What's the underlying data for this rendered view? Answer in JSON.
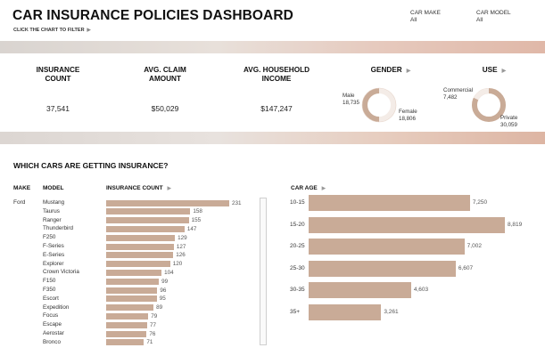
{
  "header": {
    "title": "CAR INSURANCE POLICIES DASHBOARD",
    "subtitle": "CLICK THE CHART TO FILTER",
    "filters": [
      {
        "label": "CAR MAKE",
        "value": "All"
      },
      {
        "label": "CAR MODEL",
        "value": "All"
      }
    ]
  },
  "kpis": {
    "insurance_count": {
      "label_line1": "INSURANCE",
      "label_line2": "COUNT",
      "value": "37,541"
    },
    "avg_claim": {
      "label_line1": "AVG. CLAIM",
      "label_line2": "AMOUNT",
      "value": "$50,029"
    },
    "avg_income": {
      "label_line1": "AVG. HOUSEHOLD",
      "label_line2": "INCOME",
      "value": "$147,247"
    }
  },
  "gender": {
    "label": "GENDER",
    "male_label": "Male",
    "male_value": "18,735",
    "female_label": "Female",
    "female_value": "18,806",
    "colors": {
      "male": "#c9ab97",
      "female": "#f4ece7"
    }
  },
  "use": {
    "label": "USE",
    "commercial_label": "Commercial",
    "commercial_value": "7,482",
    "private_label": "Private",
    "private_value": "30,059",
    "colors": {
      "commercial": "#f4ece7",
      "private": "#c9ab97"
    }
  },
  "cars": {
    "title": "WHICH CARS ARE GETTING INSURANCE?",
    "make_header": "MAKE",
    "model_header": "MODEL",
    "count_header": "INSURANCE COUNT",
    "make": "Ford"
  },
  "age": {
    "header": "CAR AGE"
  },
  "chart_data": [
    {
      "type": "bar",
      "categories": [
        "Mustang",
        "Taurus",
        "Ranger",
        "Thunderbird",
        "F250",
        "F-Series",
        "E-Series",
        "Explorer",
        "Crown Victoria",
        "F150",
        "F350",
        "Escort",
        "Expedition",
        "Focus",
        "Escape",
        "Aerostar",
        "Bronco"
      ],
      "values": [
        231,
        158,
        155,
        147,
        129,
        127,
        126,
        120,
        104,
        99,
        96,
        95,
        89,
        79,
        77,
        76,
        71
      ],
      "xlabel": "INSURANCE COUNT",
      "ylabel": "MODEL",
      "xlim": [
        0,
        231
      ]
    },
    {
      "type": "bar",
      "categories": [
        "10-15",
        "15-20",
        "20-25",
        "25-30",
        "30-35",
        "35+"
      ],
      "values": [
        7250,
        8819,
        7002,
        6607,
        4603,
        3261
      ],
      "xlabel": "CAR AGE",
      "xlim": [
        0,
        8819
      ]
    }
  ],
  "value_labels": {
    "models": [
      "231",
      "158",
      "155",
      "147",
      "129",
      "127",
      "126",
      "120",
      "104",
      "99",
      "96",
      "95",
      "89",
      "79",
      "77",
      "76",
      "71"
    ],
    "ages": [
      "7,250",
      "8,819",
      "7,002",
      "6,607",
      "4,603",
      "3,261"
    ]
  },
  "colors": {
    "bar": "#c9ab97"
  }
}
